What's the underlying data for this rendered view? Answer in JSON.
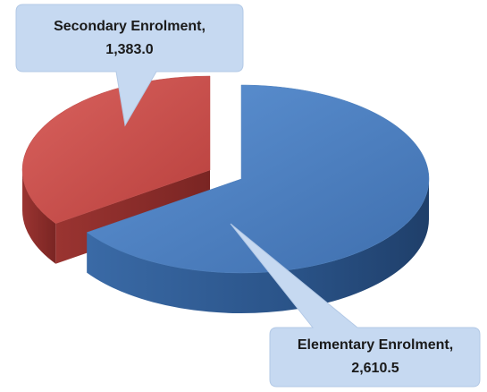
{
  "chart_data": {
    "type": "pie3d",
    "categories": [
      "Secondary Enrolment,",
      "Elementary Enrolment,"
    ],
    "values": [
      1383.0,
      2610.5
    ],
    "value_labels": [
      "1,383.0",
      "2,610.5"
    ],
    "colors": [
      "#c0504d",
      "#4f81bd"
    ]
  }
}
